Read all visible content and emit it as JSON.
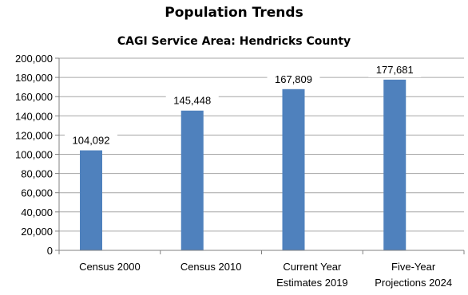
{
  "chart_data": {
    "type": "bar",
    "title": "Population Trends",
    "subtitle": "CAGI Service Area: Hendricks County",
    "categories": [
      [
        "Census 2000"
      ],
      [
        "Census 2010"
      ],
      [
        "Current Year",
        "Estimates 2019"
      ],
      [
        "Five-Year",
        "Projections 2024"
      ]
    ],
    "values": [
      104092,
      145448,
      167809,
      177681
    ],
    "data_labels": [
      "104,092",
      "145,448",
      "167,809",
      "177,681"
    ],
    "ylim": [
      0,
      200000
    ],
    "yticks": [
      "0",
      "20,000",
      "40,000",
      "60,000",
      "80,000",
      "100,000",
      "120,000",
      "140,000",
      "160,000",
      "180,000",
      "200,000"
    ],
    "xlabel": "",
    "ylabel": "",
    "grid": true,
    "legend": "none",
    "bar_color": "#4F81BD",
    "grid_color": "#A6A6A6"
  }
}
